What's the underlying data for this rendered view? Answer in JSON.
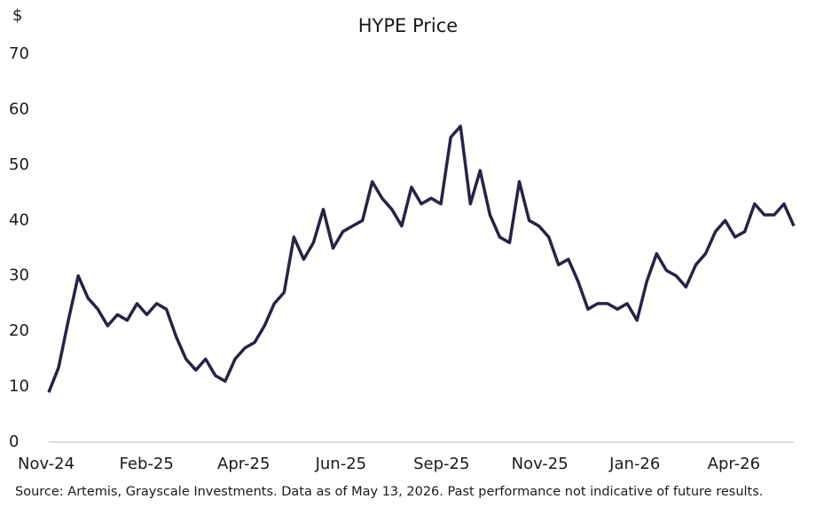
{
  "chart_data": {
    "type": "line",
    "title": "HYPE Price",
    "y_label": "$",
    "source": "Source: Artemis, Grayscale Investments. Data as of May 13, 2026. Past performance not indicative of future results.",
    "categories": [
      "Nov-24",
      null,
      null,
      null,
      null,
      null,
      null,
      null,
      null,
      null,
      "Feb-25",
      null,
      null,
      null,
      null,
      null,
      null,
      null,
      null,
      null,
      "Apr-25",
      null,
      null,
      null,
      null,
      null,
      null,
      null,
      null,
      null,
      "Jun-25",
      null,
      null,
      null,
      null,
      null,
      null,
      null,
      null,
      null,
      "Sep-25",
      null,
      null,
      null,
      null,
      null,
      null,
      null,
      null,
      null,
      "Nov-25",
      null,
      null,
      null,
      null,
      null,
      null,
      null,
      null,
      null,
      "Jan-26",
      null,
      null,
      null,
      null,
      null,
      null,
      null,
      null,
      null,
      "Apr-26",
      null,
      null,
      null,
      null,
      null,
      null
    ],
    "series": [
      {
        "name": "HYPE",
        "color": "#2b2146",
        "values": [
          9,
          13.5,
          22,
          30,
          26,
          24,
          21,
          23,
          22,
          25,
          23,
          25,
          24,
          19,
          15,
          13,
          15,
          12,
          11,
          15,
          17,
          18,
          21,
          25,
          27,
          37,
          33,
          36,
          42,
          35,
          38,
          39,
          40,
          47,
          44,
          42,
          39,
          46,
          43,
          44,
          43,
          55,
          57,
          43,
          49,
          41,
          37,
          36,
          47,
          40,
          39,
          37,
          32,
          33,
          29,
          24,
          25,
          25,
          24,
          25,
          22,
          29,
          34,
          31,
          30,
          28,
          32,
          34,
          38,
          40,
          37,
          38,
          43,
          41,
          41,
          43,
          39
        ]
      }
    ],
    "ylim": [
      0,
      70
    ],
    "yticks": [
      0,
      10,
      20,
      30,
      40,
      50,
      60,
      70
    ],
    "grid": false
  }
}
